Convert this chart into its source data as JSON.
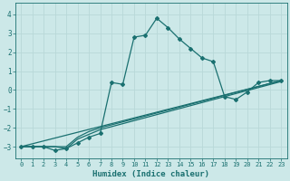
{
  "xlabel": "Humidex (Indice chaleur)",
  "ylabel": "",
  "xlim": [
    -0.5,
    23.5
  ],
  "ylim": [
    -3.6,
    4.6
  ],
  "yticks": [
    -3,
    -2,
    -1,
    0,
    1,
    2,
    3,
    4
  ],
  "xticks": [
    0,
    1,
    2,
    3,
    4,
    5,
    6,
    7,
    8,
    9,
    10,
    11,
    12,
    13,
    14,
    15,
    16,
    17,
    18,
    19,
    20,
    21,
    22,
    23
  ],
  "bg_color": "#cce8e8",
  "grid_color": "#aad4d4",
  "line_color": "#1a7070",
  "lines": [
    {
      "x": [
        0,
        1,
        2,
        3,
        4,
        5,
        6,
        7,
        8,
        9,
        10,
        11,
        12,
        13,
        14,
        15,
        16,
        17,
        18,
        19,
        20,
        21,
        22,
        23
      ],
      "y": [
        -3.0,
        -3.0,
        -3.0,
        -3.2,
        -3.1,
        -2.8,
        -2.5,
        -2.3,
        0.4,
        0.3,
        2.8,
        2.9,
        3.8,
        3.3,
        2.7,
        2.2,
        1.7,
        1.5,
        -0.35,
        -0.5,
        -0.1,
        0.4,
        0.5,
        0.5
      ],
      "marker": true
    },
    {
      "x": [
        0,
        2,
        3,
        4,
        5,
        6,
        7,
        23
      ],
      "y": [
        -3.0,
        -3.0,
        -3.0,
        -3.0,
        -2.5,
        -2.2,
        -2.0,
        0.5
      ],
      "marker": false
    },
    {
      "x": [
        0,
        2,
        3,
        4,
        5,
        6,
        7,
        23
      ],
      "y": [
        -3.0,
        -3.0,
        -3.0,
        -3.1,
        -2.6,
        -2.35,
        -2.1,
        0.45
      ],
      "marker": false
    },
    {
      "x": [
        0,
        23
      ],
      "y": [
        -3.0,
        0.5
      ],
      "marker": false
    }
  ]
}
